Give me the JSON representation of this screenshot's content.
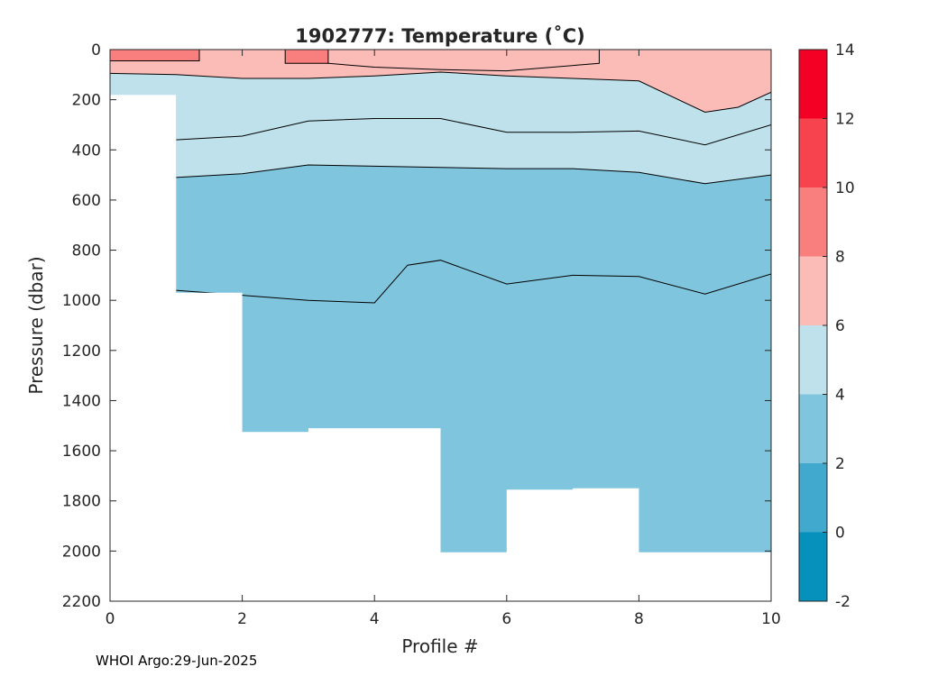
{
  "chart_data": {
    "type": "contour",
    "title": "1902777:  Temperature (˚C)",
    "xlabel": "Profile #",
    "ylabel": "Pressure (dbar)",
    "xlim": [
      0,
      10
    ],
    "ylim": [
      2200,
      0
    ],
    "y_reversed": true,
    "x_ticks": [
      0,
      2,
      4,
      6,
      8,
      10
    ],
    "y_ticks": [
      0,
      200,
      400,
      600,
      800,
      1000,
      1200,
      1400,
      1600,
      1800,
      2000,
      2200
    ],
    "grid": false,
    "contour_levels": [
      4,
      6,
      8
    ],
    "colorbar": {
      "lim": [
        -2,
        14
      ],
      "ticks": [
        -2,
        0,
        2,
        4,
        6,
        8,
        10,
        12,
        14
      ],
      "bands": [
        {
          "from": -2,
          "to": 0,
          "color": "#0691bc"
        },
        {
          "from": 0,
          "to": 2,
          "color": "#42a9ce"
        },
        {
          "from": 2,
          "to": 4,
          "color": "#80c5de"
        },
        {
          "from": 4,
          "to": 6,
          "color": "#bfe1ec"
        },
        {
          "from": 6,
          "to": 8,
          "color": "#fbbcb8"
        },
        {
          "from": 8,
          "to": 10,
          "color": "#f87f7d"
        },
        {
          "from": 10,
          "to": 12,
          "color": "#f6434e"
        },
        {
          "from": 12,
          "to": 14,
          "color": "#f30024"
        }
      ]
    },
    "profiles": [
      {
        "x": 0,
        "max_pressure": 180
      },
      {
        "x": 1,
        "max_pressure": 970
      },
      {
        "x": 2,
        "max_pressure": 1525
      },
      {
        "x": 3,
        "max_pressure": 1510
      },
      {
        "x": 4,
        "max_pressure": 1510
      },
      {
        "x": 5,
        "max_pressure": 2005
      },
      {
        "x": 6,
        "max_pressure": 1755
      },
      {
        "x": 7,
        "max_pressure": 1750
      },
      {
        "x": 8,
        "max_pressure": 2005
      },
      {
        "x": 9,
        "max_pressure": 2005
      },
      {
        "x": 10,
        "max_pressure": 2005
      }
    ],
    "isotherms": {
      "iso6": [
        [
          0,
          95
        ],
        [
          1,
          100
        ],
        [
          2,
          115
        ],
        [
          3,
          115
        ],
        [
          4,
          105
        ],
        [
          5,
          90
        ],
        [
          6,
          105
        ],
        [
          7,
          115
        ],
        [
          8,
          125
        ],
        [
          9,
          250
        ],
        [
          9.5,
          230
        ],
        [
          10,
          170
        ]
      ],
      "iso4_upper": [
        [
          1,
          360
        ],
        [
          2,
          345
        ],
        [
          3,
          285
        ],
        [
          4,
          275
        ],
        [
          5,
          275
        ],
        [
          6,
          330
        ],
        [
          7,
          330
        ],
        [
          8,
          325
        ],
        [
          9,
          380
        ],
        [
          10,
          300
        ]
      ],
      "iso4_lower": [
        [
          1,
          510
        ],
        [
          2,
          495
        ],
        [
          3,
          460
        ],
        [
          4,
          465
        ],
        [
          5,
          470
        ],
        [
          6,
          475
        ],
        [
          7,
          475
        ],
        [
          8,
          490
        ],
        [
          9,
          535
        ],
        [
          10,
          500
        ]
      ],
      "iso4_deep": [
        [
          1,
          960
        ],
        [
          2,
          980
        ],
        [
          3,
          1000
        ],
        [
          4,
          1010
        ],
        [
          4.5,
          860
        ],
        [
          5,
          840
        ],
        [
          6,
          935
        ],
        [
          7,
          900
        ],
        [
          8,
          905
        ],
        [
          9,
          975
        ],
        [
          10,
          895
        ]
      ],
      "iso8_a": [
        [
          0,
          0
        ],
        [
          1.35,
          0
        ],
        [
          1.35,
          45
        ],
        [
          0,
          45
        ]
      ],
      "iso8_b": [
        [
          2.65,
          0
        ],
        [
          3.3,
          0
        ],
        [
          3.3,
          55
        ],
        [
          2.65,
          55
        ]
      ],
      "iso6_blob": [
        [
          3.3,
          0
        ],
        [
          7.4,
          0
        ],
        [
          7.4,
          55
        ],
        [
          6,
          85
        ],
        [
          5,
          80
        ],
        [
          4,
          70
        ],
        [
          3.3,
          55
        ]
      ]
    }
  },
  "footer": "WHOI Argo:29-Jun-2025"
}
